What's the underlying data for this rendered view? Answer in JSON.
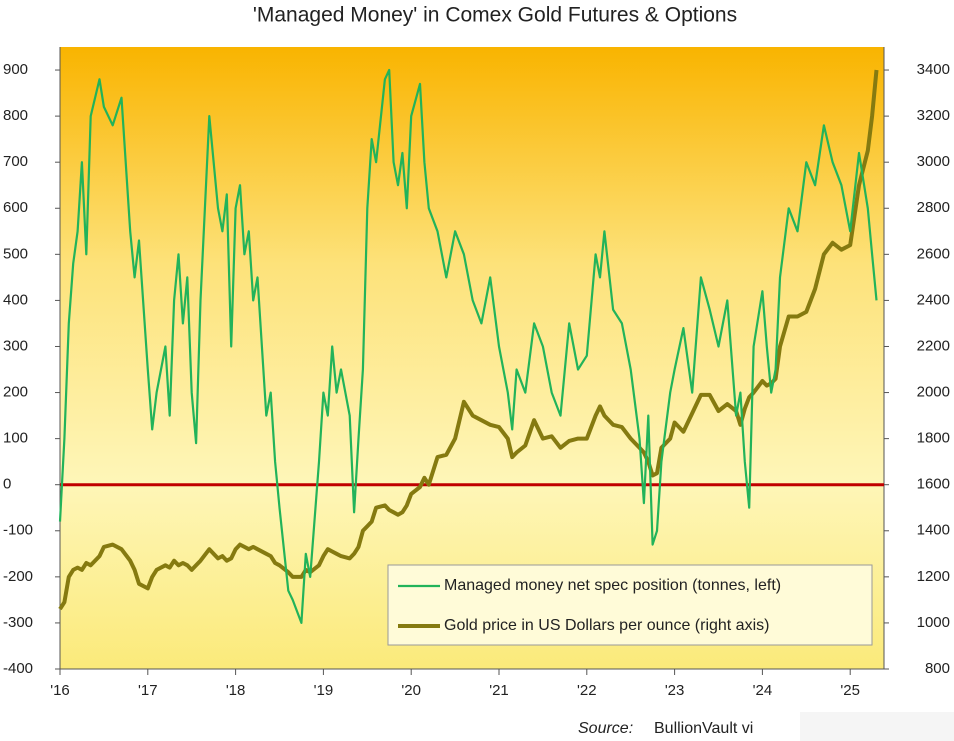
{
  "chart_data": {
    "type": "line",
    "title": "'Managed Money' in Comex Gold Futures & Options",
    "source_label": "Source:",
    "source": "BullionVault vi",
    "x": [
      2016,
      2016.05,
      2016.1,
      2016.15,
      2016.2,
      2016.25,
      2016.3,
      2016.35,
      2016.45,
      2016.5,
      2016.6,
      2016.7,
      2016.8,
      2016.85,
      2016.9,
      2017,
      2017.05,
      2017.1,
      2017.2,
      2017.25,
      2017.3,
      2017.35,
      2017.4,
      2017.45,
      2017.5,
      2017.55,
      2017.6,
      2017.7,
      2017.8,
      2017.85,
      2017.9,
      2017.95,
      2018,
      2018.05,
      2018.1,
      2018.15,
      2018.2,
      2018.25,
      2018.35,
      2018.4,
      2018.45,
      2018.5,
      2018.6,
      2018.65,
      2018.75,
      2018.8,
      2018.85,
      2018.95,
      2019,
      2019.05,
      2019.1,
      2019.15,
      2019.2,
      2019.3,
      2019.35,
      2019.4,
      2019.45,
      2019.5,
      2019.55,
      2019.6,
      2019.7,
      2019.75,
      2019.8,
      2019.85,
      2019.9,
      2019.95,
      2020,
      2020.1,
      2020.15,
      2020.2,
      2020.3,
      2020.4,
      2020.5,
      2020.6,
      2020.7,
      2020.8,
      2020.9,
      2021,
      2021.1,
      2021.15,
      2021.2,
      2021.3,
      2021.4,
      2021.5,
      2021.6,
      2021.7,
      2021.8,
      2021.9,
      2022,
      2022.1,
      2022.15,
      2022.2,
      2022.3,
      2022.4,
      2022.5,
      2022.6,
      2022.65,
      2022.7,
      2022.75,
      2022.8,
      2022.85,
      2022.95,
      2023,
      2023.1,
      2023.2,
      2023.3,
      2023.4,
      2023.5,
      2023.6,
      2023.7,
      2023.75,
      2023.8,
      2023.85,
      2023.9,
      2024,
      2024.05,
      2024.1,
      2024.15,
      2024.2,
      2024.3,
      2024.4,
      2024.5,
      2024.6,
      2024.7,
      2024.8,
      2024.9,
      2025,
      2025.1,
      2025.2,
      2025.25,
      2025.3
    ],
    "series": [
      {
        "name": "Managed money net spec position (tonnes, left)",
        "color": "#22b35a",
        "axis": "y",
        "values": [
          -80,
          100,
          350,
          480,
          550,
          700,
          500,
          800,
          880,
          820,
          780,
          840,
          550,
          450,
          530,
          250,
          120,
          200,
          300,
          150,
          400,
          500,
          350,
          450,
          200,
          90,
          400,
          800,
          600,
          550,
          630,
          300,
          600,
          650,
          500,
          550,
          400,
          450,
          150,
          200,
          50,
          -50,
          -230,
          -250,
          -300,
          -150,
          -200,
          50,
          200,
          150,
          300,
          200,
          250,
          150,
          -60,
          100,
          250,
          600,
          750,
          700,
          880,
          900,
          700,
          650,
          720,
          600,
          800,
          870,
          700,
          600,
          550,
          450,
          550,
          500,
          400,
          350,
          450,
          300,
          200,
          120,
          250,
          200,
          350,
          300,
          200,
          150,
          350,
          250,
          280,
          500,
          450,
          550,
          380,
          350,
          250,
          100,
          -40,
          150,
          -130,
          -100,
          50,
          200,
          250,
          340,
          200,
          450,
          380,
          300,
          400,
          150,
          200,
          50,
          -50,
          300,
          420,
          300,
          200,
          250,
          450,
          600,
          550,
          700,
          650,
          780,
          700,
          650,
          550,
          720,
          600,
          500,
          400
        ]
      },
      {
        "name": "Gold price in US Dollars per ounce (right axis)",
        "color": "#857a10",
        "axis": "y2",
        "values": [
          1060,
          1090,
          1200,
          1230,
          1240,
          1230,
          1260,
          1250,
          1290,
          1330,
          1340,
          1320,
          1270,
          1230,
          1170,
          1150,
          1200,
          1230,
          1250,
          1240,
          1270,
          1250,
          1260,
          1250,
          1230,
          1250,
          1270,
          1320,
          1280,
          1290,
          1270,
          1280,
          1320,
          1340,
          1330,
          1320,
          1330,
          1320,
          1300,
          1290,
          1260,
          1250,
          1220,
          1200,
          1200,
          1230,
          1220,
          1250,
          1290,
          1320,
          1310,
          1300,
          1290,
          1280,
          1300,
          1330,
          1400,
          1420,
          1440,
          1500,
          1510,
          1490,
          1480,
          1470,
          1480,
          1510,
          1560,
          1590,
          1630,
          1600,
          1720,
          1730,
          1800,
          1960,
          1900,
          1880,
          1860,
          1850,
          1800,
          1720,
          1740,
          1770,
          1880,
          1800,
          1810,
          1760,
          1790,
          1800,
          1800,
          1900,
          1940,
          1900,
          1860,
          1850,
          1800,
          1760,
          1740,
          1700,
          1640,
          1650,
          1760,
          1800,
          1870,
          1830,
          1910,
          1990,
          1990,
          1920,
          1950,
          1920,
          1860,
          1930,
          1980,
          2000,
          2050,
          2030,
          2040,
          2060,
          2200,
          2330,
          2330,
          2350,
          2450,
          2600,
          2650,
          2620,
          2640,
          2900,
          3050,
          3200,
          3400
        ]
      }
    ],
    "xlim": [
      2016,
      2025.385
    ],
    "xticks": [
      {
        "value": 2016,
        "label": "'16"
      },
      {
        "value": 2017,
        "label": "'17"
      },
      {
        "value": 2018,
        "label": "'18"
      },
      {
        "value": 2019,
        "label": "'19"
      },
      {
        "value": 2020,
        "label": "'20"
      },
      {
        "value": 2021,
        "label": "'21"
      },
      {
        "value": 2022,
        "label": "'22"
      },
      {
        "value": 2023,
        "label": "'23"
      },
      {
        "value": 2024,
        "label": "'24"
      },
      {
        "value": 2025,
        "label": "'25"
      }
    ],
    "ylim": [
      -400,
      950
    ],
    "yticks": [
      -400,
      -300,
      -200,
      -100,
      0,
      100,
      200,
      300,
      400,
      500,
      600,
      700,
      800,
      900
    ],
    "y2lim": [
      800,
      3500
    ],
    "y2ticks": [
      800,
      1000,
      1200,
      1400,
      1600,
      1800,
      2000,
      2200,
      2400,
      2600,
      2800,
      3000,
      3200,
      3400
    ],
    "zero_line_color": "#c00000",
    "legend": "lower right"
  }
}
